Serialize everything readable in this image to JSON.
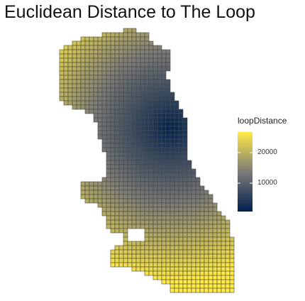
{
  "title": "Euclidean Distance to The Loop",
  "legend": {
    "title": "loopDistance",
    "ticks": [
      {
        "label": "20000",
        "value": 20000
      },
      {
        "label": "10000",
        "value": 10000
      }
    ],
    "range": [
      0,
      27000
    ],
    "colors": [
      "#00204d",
      "#7c7b78",
      "#ffea46"
    ]
  },
  "map": {
    "region": "Chicago fishnet grid",
    "cell_outline_color": "#4a4a44",
    "loop_center_color": "#00204d",
    "far_color": "#ffea46"
  }
}
